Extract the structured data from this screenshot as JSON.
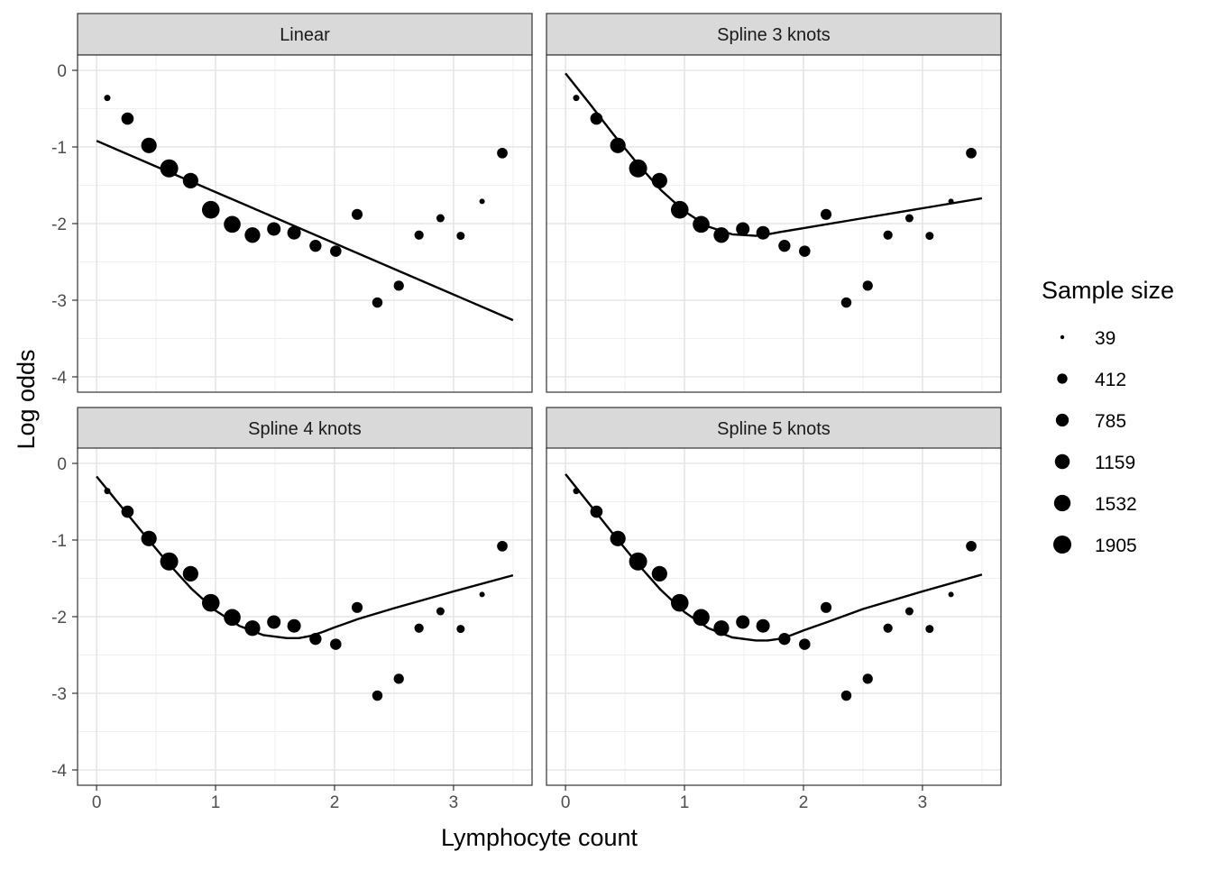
{
  "chart_data": {
    "type": "scatter",
    "xlabel": "Lymphocyte count",
    "ylabel": "Log odds",
    "xlim": [
      -0.16,
      3.66
    ],
    "ylim": [
      -4.2,
      0.2
    ],
    "x_ticks": [
      0,
      1,
      2,
      3
    ],
    "x_tick_labels": [
      "0",
      "1",
      "2",
      "3"
    ],
    "y_ticks": [
      0,
      -1,
      -2,
      -3,
      -4
    ],
    "y_tick_labels": [
      "0",
      "-1",
      "-2",
      "-3",
      "-4"
    ],
    "grid": true,
    "legend": {
      "title": "Sample size",
      "placement": "right",
      "entries": [
        {
          "label": "39",
          "value": 39
        },
        {
          "label": "412",
          "value": 412
        },
        {
          "label": "785",
          "value": 785
        },
        {
          "label": "1159",
          "value": 1159
        },
        {
          "label": "1532",
          "value": 1532
        },
        {
          "label": "1905",
          "value": 1905
        }
      ]
    },
    "points": [
      {
        "x": 0.09,
        "y": -0.36,
        "n": 90
      },
      {
        "x": 0.26,
        "y": -0.63,
        "n": 700
      },
      {
        "x": 0.44,
        "y": -0.98,
        "n": 1300
      },
      {
        "x": 0.61,
        "y": -1.28,
        "n": 1905
      },
      {
        "x": 0.79,
        "y": -1.44,
        "n": 1300
      },
      {
        "x": 0.96,
        "y": -1.82,
        "n": 1800
      },
      {
        "x": 1.14,
        "y": -2.01,
        "n": 1600
      },
      {
        "x": 1.31,
        "y": -2.15,
        "n": 1300
      },
      {
        "x": 1.49,
        "y": -2.07,
        "n": 900
      },
      {
        "x": 1.66,
        "y": -2.12,
        "n": 900
      },
      {
        "x": 1.84,
        "y": -2.29,
        "n": 650
      },
      {
        "x": 2.01,
        "y": -2.36,
        "n": 550
      },
      {
        "x": 2.19,
        "y": -1.88,
        "n": 500
      },
      {
        "x": 2.36,
        "y": -3.03,
        "n": 420
      },
      {
        "x": 2.54,
        "y": -2.81,
        "n": 400
      },
      {
        "x": 2.71,
        "y": -2.15,
        "n": 300
      },
      {
        "x": 2.89,
        "y": -1.93,
        "n": 200
      },
      {
        "x": 3.06,
        "y": -2.16,
        "n": 200
      },
      {
        "x": 3.24,
        "y": -1.71,
        "n": 60
      },
      {
        "x": 3.41,
        "y": -1.08,
        "n": 450
      }
    ],
    "panels": [
      {
        "title": "Linear",
        "curve_x": [
          0.0,
          3.5
        ],
        "curve_y": [
          -0.92,
          -3.26
        ]
      },
      {
        "title": "Spline 3 knots",
        "curve_x": [
          0.0,
          0.2,
          0.4,
          0.6,
          0.8,
          1.0,
          1.2,
          1.4,
          1.6,
          1.7,
          1.8,
          2.0,
          2.5,
          3.0,
          3.5
        ],
        "curve_y": [
          -0.04,
          -0.43,
          -0.83,
          -1.21,
          -1.56,
          -1.84,
          -2.04,
          -2.14,
          -2.16,
          -2.14,
          -2.11,
          -2.06,
          -1.93,
          -1.8,
          -1.67
        ]
      },
      {
        "title": "Spline 4 knots",
        "curve_x": [
          0.0,
          0.2,
          0.4,
          0.6,
          0.8,
          1.0,
          1.2,
          1.4,
          1.6,
          1.7,
          1.8,
          1.9,
          2.0,
          2.2,
          2.5,
          3.0,
          3.5
        ],
        "curve_y": [
          -0.17,
          -0.55,
          -0.93,
          -1.3,
          -1.64,
          -1.92,
          -2.12,
          -2.24,
          -2.28,
          -2.28,
          -2.25,
          -2.2,
          -2.14,
          -2.03,
          -1.89,
          -1.67,
          -1.46
        ]
      },
      {
        "title": "Spline 5 knots",
        "curve_x": [
          0.0,
          0.2,
          0.4,
          0.6,
          0.8,
          1.0,
          1.2,
          1.4,
          1.6,
          1.7,
          1.8,
          1.9,
          2.0,
          2.2,
          2.5,
          3.0,
          3.5
        ],
        "curve_y": [
          -0.14,
          -0.53,
          -0.92,
          -1.3,
          -1.65,
          -1.94,
          -2.15,
          -2.27,
          -2.31,
          -2.31,
          -2.29,
          -2.24,
          -2.18,
          -2.07,
          -1.9,
          -1.67,
          -1.45
        ]
      }
    ]
  }
}
